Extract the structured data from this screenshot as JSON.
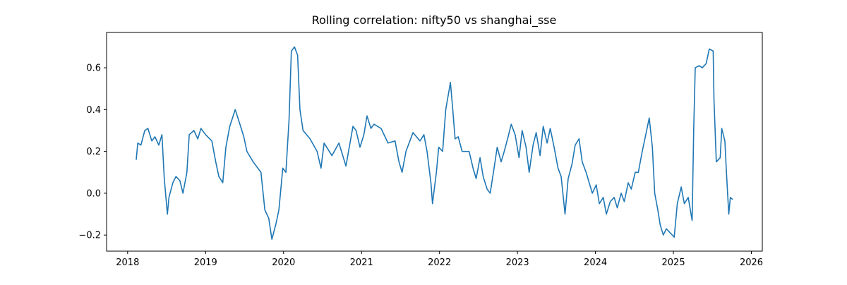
{
  "chart_data": {
    "type": "line",
    "title": "Rolling correlation: nifty50 vs shanghai_sse",
    "xlim": [
      2017.73,
      2026.14
    ],
    "ylim": [
      -0.277,
      0.769
    ],
    "xticks": [
      2018,
      2019,
      2020,
      2021,
      2022,
      2023,
      2024,
      2025,
      2026
    ],
    "yticks": [
      {
        "value": -0.2,
        "label": "−0.2"
      },
      {
        "value": 0,
        "label": "0.0"
      },
      0.2,
      0.4,
      0.6
    ],
    "grid": false,
    "series": [
      {
        "color": "#1f77b4",
        "x": [
          2018.11,
          2018.13,
          2018.17,
          2018.22,
          2018.26,
          2018.31,
          2018.35,
          2018.4,
          2018.44,
          2018.47,
          2018.51,
          2018.53,
          2018.58,
          2018.62,
          2018.67,
          2018.71,
          2018.76,
          2018.79,
          2018.85,
          2018.9,
          2018.94,
          2019.0,
          2019.08,
          2019.13,
          2019.17,
          2019.22,
          2019.26,
          2019.31,
          2019.38,
          2019.44,
          2019.49,
          2019.53,
          2019.61,
          2019.67,
          2019.71,
          2019.76,
          2019.81,
          2019.85,
          2019.9,
          2019.94,
          2019.99,
          2020.03,
          2020.07,
          2020.1,
          2020.14,
          2020.18,
          2020.21,
          2020.25,
          2020.34,
          2020.43,
          2020.48,
          2020.52,
          2020.62,
          2020.71,
          2020.8,
          2020.89,
          2020.93,
          2020.98,
          2021.03,
          2021.07,
          2021.12,
          2021.16,
          2021.25,
          2021.34,
          2021.43,
          2021.48,
          2021.52,
          2021.57,
          2021.66,
          2021.75,
          2021.8,
          2021.84,
          2021.89,
          2021.91,
          2021.96,
          2021.99,
          2022.04,
          2022.08,
          2022.14,
          2022.17,
          2022.2,
          2022.24,
          2022.29,
          2022.38,
          2022.43,
          2022.47,
          2022.52,
          2022.56,
          2022.61,
          2022.65,
          2022.7,
          2022.74,
          2022.79,
          2022.83,
          2022.88,
          2022.92,
          2022.97,
          2023.02,
          2023.06,
          2023.11,
          2023.15,
          2023.2,
          2023.24,
          2023.29,
          2023.33,
          2023.38,
          2023.42,
          2023.47,
          2023.52,
          2023.56,
          2023.61,
          2023.65,
          2023.7,
          2023.74,
          2023.79,
          2023.83,
          2023.88,
          2023.92,
          2023.96,
          2024.01,
          2024.05,
          2024.1,
          2024.14,
          2024.19,
          2024.24,
          2024.28,
          2024.33,
          2024.37,
          2024.42,
          2024.46,
          2024.51,
          2024.55,
          2024.6,
          2024.64,
          2024.69,
          2024.73,
          2024.76,
          2024.8,
          2024.83,
          2024.87,
          2024.91,
          2024.96,
          2025.01,
          2025.05,
          2025.1,
          2025.14,
          2025.19,
          2025.24,
          2025.26,
          2025.28,
          2025.33,
          2025.37,
          2025.42,
          2025.46,
          2025.51,
          2025.52,
          2025.55,
          2025.6,
          2025.62,
          2025.66,
          2025.68,
          2025.71,
          2025.73,
          2025.76
        ],
        "values": [
          0.16,
          0.24,
          0.23,
          0.3,
          0.31,
          0.25,
          0.27,
          0.23,
          0.28,
          0.07,
          -0.1,
          -0.02,
          0.05,
          0.08,
          0.06,
          0.0,
          0.1,
          0.28,
          0.3,
          0.26,
          0.31,
          0.28,
          0.25,
          0.15,
          0.08,
          0.05,
          0.22,
          0.32,
          0.4,
          0.33,
          0.27,
          0.2,
          0.15,
          0.12,
          0.1,
          -0.08,
          -0.12,
          -0.22,
          -0.15,
          -0.08,
          0.12,
          0.1,
          0.35,
          0.68,
          0.7,
          0.66,
          0.4,
          0.3,
          0.26,
          0.2,
          0.12,
          0.24,
          0.18,
          0.24,
          0.13,
          0.32,
          0.3,
          0.22,
          0.28,
          0.37,
          0.31,
          0.33,
          0.31,
          0.24,
          0.25,
          0.15,
          0.1,
          0.2,
          0.29,
          0.25,
          0.28,
          0.2,
          0.05,
          -0.05,
          0.1,
          0.22,
          0.2,
          0.4,
          0.53,
          0.4,
          0.26,
          0.27,
          0.2,
          0.2,
          0.12,
          0.07,
          0.17,
          0.08,
          0.02,
          0.0,
          0.12,
          0.22,
          0.15,
          0.2,
          0.27,
          0.33,
          0.28,
          0.17,
          0.3,
          0.22,
          0.1,
          0.23,
          0.29,
          0.18,
          0.32,
          0.24,
          0.31,
          0.22,
          0.12,
          0.08,
          -0.1,
          0.07,
          0.14,
          0.23,
          0.26,
          0.15,
          0.1,
          0.05,
          0.0,
          0.04,
          -0.05,
          -0.02,
          -0.1,
          -0.04,
          -0.02,
          -0.07,
          0.0,
          -0.04,
          0.05,
          0.02,
          0.1,
          0.1,
          0.2,
          0.27,
          0.36,
          0.22,
          0.0,
          -0.08,
          -0.15,
          -0.2,
          -0.17,
          -0.19,
          -0.21,
          -0.05,
          0.03,
          -0.05,
          -0.02,
          -0.13,
          0.3,
          0.6,
          0.61,
          0.6,
          0.62,
          0.69,
          0.68,
          0.45,
          0.15,
          0.17,
          0.31,
          0.25,
          0.1,
          -0.1,
          -0.02,
          -0.03
        ]
      }
    ]
  }
}
